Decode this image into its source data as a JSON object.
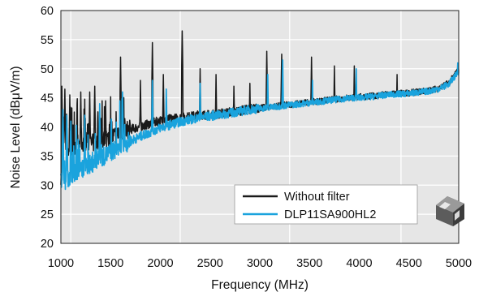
{
  "chart_data": {
    "type": "line",
    "title": "",
    "xlabel": "Frequency (MHz)",
    "ylabel": "Noise Level (dBμV/m)",
    "xlim": [
      1000,
      5000
    ],
    "ylim": [
      20,
      60
    ],
    "xticks": [
      "1000",
      "1500",
      "2000",
      "2500",
      "3000",
      "3500",
      "4000",
      "4500",
      "5000"
    ],
    "yticks": [
      "20",
      "25",
      "30",
      "35",
      "40",
      "45",
      "50",
      "55",
      "60"
    ],
    "grid": {
      "horizontal": true,
      "vertical": "selected",
      "vertical_at": [
        1100,
        2200,
        3300,
        4420
      ]
    },
    "background_color": "#e6e6e6",
    "legend_position": "bottom-right",
    "series": [
      {
        "name": "Without filter",
        "color": "#1a1a1a",
        "x": [
          1000,
          1010,
          1040,
          1080,
          1100,
          1150,
          1200,
          1260,
          1300,
          1360,
          1400,
          1500,
          1600,
          1700,
          1800,
          1900,
          2000,
          2100,
          2200,
          2300,
          2400,
          2500,
          2600,
          2700,
          2800,
          2900,
          3000,
          3100,
          3200,
          3300,
          3400,
          3500,
          3600,
          3700,
          3800,
          3900,
          4000,
          4100,
          4200,
          4300,
          4400,
          4500,
          4600,
          4700,
          4800,
          4900,
          5000
        ],
        "y": [
          31.5,
          34,
          38,
          35.5,
          36,
          37,
          37,
          37.5,
          37,
          37.2,
          37.5,
          38,
          39,
          39.5,
          40,
          40.5,
          41,
          41.3,
          41.5,
          41.7,
          42,
          42,
          42.2,
          42.5,
          42.7,
          43,
          43.2,
          43.4,
          43.6,
          43.8,
          44,
          44.2,
          44.4,
          44.6,
          44.8,
          45,
          45.1,
          45.2,
          45.4,
          45.6,
          45.7,
          45.8,
          46,
          46.2,
          46.6,
          47.5,
          49.8
        ],
        "spikes": [
          {
            "x": 1010,
            "y": 47
          },
          {
            "x": 1040,
            "y": 46.5
          },
          {
            "x": 1090,
            "y": 45.5
          },
          {
            "x": 1200,
            "y": 46
          },
          {
            "x": 1290,
            "y": 46
          },
          {
            "x": 1340,
            "y": 47
          },
          {
            "x": 1450,
            "y": 44.5
          },
          {
            "x": 1600,
            "y": 52
          },
          {
            "x": 1800,
            "y": 48
          },
          {
            "x": 1920,
            "y": 54.5
          },
          {
            "x": 2030,
            "y": 49
          },
          {
            "x": 2220,
            "y": 56.5
          },
          {
            "x": 2400,
            "y": 50
          },
          {
            "x": 2560,
            "y": 49
          },
          {
            "x": 2740,
            "y": 47
          },
          {
            "x": 2900,
            "y": 47.5
          },
          {
            "x": 3070,
            "y": 53
          },
          {
            "x": 3220,
            "y": 52.5
          },
          {
            "x": 3520,
            "y": 52
          },
          {
            "x": 3750,
            "y": 50.5
          },
          {
            "x": 3950,
            "y": 50.5
          },
          {
            "x": 4380,
            "y": 49
          },
          {
            "x": 4990,
            "y": 51
          }
        ]
      },
      {
        "name": "DLP11SA900HL2",
        "color": "#1aa3dd",
        "x": [
          1000,
          1010,
          1040,
          1080,
          1100,
          1150,
          1200,
          1260,
          1300,
          1360,
          1400,
          1500,
          1600,
          1700,
          1800,
          1900,
          2000,
          2100,
          2200,
          2300,
          2400,
          2500,
          2600,
          2700,
          2800,
          2900,
          3000,
          3100,
          3200,
          3300,
          3400,
          3500,
          3600,
          3700,
          3800,
          3900,
          4000,
          4100,
          4200,
          4300,
          4400,
          4500,
          4600,
          4700,
          4800,
          4900,
          5000
        ],
        "y": [
          31,
          31,
          30.5,
          31,
          31.5,
          32,
          32.5,
          33,
          33.5,
          34,
          34.5,
          35.5,
          36.5,
          37.5,
          38.3,
          39,
          39.8,
          40.3,
          40.8,
          41.2,
          41.5,
          41.8,
          42,
          42.3,
          42.6,
          42.9,
          43.1,
          43.3,
          43.5,
          43.7,
          43.9,
          44.1,
          44.3,
          44.5,
          44.7,
          44.9,
          45,
          45.1,
          45.3,
          45.5,
          45.6,
          45.7,
          45.9,
          46.1,
          46.5,
          47.3,
          49.5
        ],
        "spikes": [
          {
            "x": 1020,
            "y": 43
          },
          {
            "x": 1060,
            "y": 42
          },
          {
            "x": 1100,
            "y": 41
          },
          {
            "x": 1240,
            "y": 42
          },
          {
            "x": 1390,
            "y": 44
          },
          {
            "x": 1620,
            "y": 46
          },
          {
            "x": 1920,
            "y": 48
          },
          {
            "x": 2060,
            "y": 46.5
          },
          {
            "x": 2400,
            "y": 47.5
          },
          {
            "x": 3080,
            "y": 49
          },
          {
            "x": 3230,
            "y": 51.5
          },
          {
            "x": 3530,
            "y": 48
          },
          {
            "x": 3970,
            "y": 50
          },
          {
            "x": 4990,
            "y": 51
          }
        ]
      }
    ]
  }
}
